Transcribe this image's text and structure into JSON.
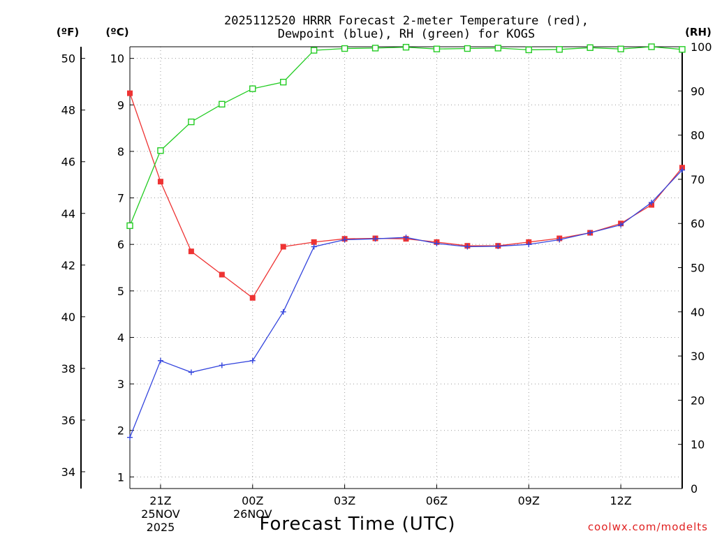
{
  "title": {
    "line1": "2025112520 HRRR Forecast 2-meter Temperature (red),",
    "line2": "Dewpoint (blue), RH (green) for KOGS"
  },
  "axes": {
    "unit_f": "(ºF)",
    "unit_c": "(ºC)",
    "unit_rh": "(RH)",
    "xlabel": "Forecast Time (UTC)"
  },
  "credit": "coolwx.com/modelts",
  "colors": {
    "temperature": "#ee3333",
    "dewpoint": "#3344dd",
    "rh": "#22cc22",
    "credit": "#e02020"
  },
  "chart_data": {
    "type": "line",
    "title": "2025112520 HRRR Forecast 2-meter Temperature (red), Dewpoint (blue), RH (green) for KOGS",
    "xlabel": "Forecast Time (UTC)",
    "x_hours_note": "hourly steps starting 2025-11-25 20Z",
    "x": [
      "20Z",
      "21Z",
      "22Z",
      "23Z",
      "00Z",
      "01Z",
      "02Z",
      "03Z",
      "04Z",
      "05Z",
      "06Z",
      "07Z",
      "08Z",
      "09Z",
      "10Z",
      "11Z",
      "12Z",
      "13Z",
      "14Z"
    ],
    "x_ticks": [
      {
        "index": 1,
        "label": "21Z",
        "date": "25NOV",
        "year": "2025"
      },
      {
        "index": 4,
        "label": "00Z",
        "date": "26NOV",
        "year": ""
      },
      {
        "index": 7,
        "label": "03Z",
        "date": "",
        "year": ""
      },
      {
        "index": 10,
        "label": "06Z",
        "date": "",
        "year": ""
      },
      {
        "index": 13,
        "label": "09Z",
        "date": "",
        "year": ""
      },
      {
        "index": 16,
        "label": "12Z",
        "date": "",
        "year": ""
      }
    ],
    "y_c_range": [
      0.75,
      10.25
    ],
    "y_c_ticks": [
      1,
      2,
      3,
      4,
      5,
      6,
      7,
      8,
      9,
      10
    ],
    "y_f_ticks": [
      34,
      36,
      38,
      40,
      42,
      44,
      46,
      48,
      50
    ],
    "y_rh_range": [
      0,
      100
    ],
    "y_rh_ticks": [
      0,
      10,
      20,
      30,
      40,
      50,
      60,
      70,
      80,
      90,
      100
    ],
    "grid": true,
    "series": [
      {
        "name": "Temperature",
        "axis": "C",
        "marker": "square",
        "values": [
          9.25,
          7.35,
          5.85,
          5.35,
          4.85,
          5.95,
          6.05,
          6.12,
          6.13,
          6.12,
          6.05,
          5.97,
          5.97,
          6.05,
          6.13,
          6.25,
          6.45,
          6.85,
          7.65
        ]
      },
      {
        "name": "Dewpoint",
        "axis": "C",
        "marker": "plus",
        "values": [
          1.85,
          3.5,
          3.25,
          3.4,
          3.5,
          4.55,
          5.95,
          6.1,
          6.12,
          6.15,
          6.02,
          5.95,
          5.96,
          6.0,
          6.1,
          6.25,
          6.42,
          6.9,
          7.6
        ]
      },
      {
        "name": "RH",
        "axis": "RH",
        "marker": "open-square",
        "values": [
          59.5,
          76.5,
          83,
          87,
          90.5,
          92,
          99.2,
          99.6,
          99.7,
          99.9,
          99.5,
          99.6,
          99.7,
          99.3,
          99.4,
          99.8,
          99.5,
          100,
          99.4
        ]
      }
    ]
  }
}
